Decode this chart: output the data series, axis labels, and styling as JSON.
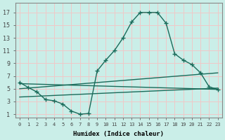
{
  "xlabel": "Humidex (Indice chaleur)",
  "background_color": "#caeee8",
  "grid_color": "#f0c8c8",
  "line_color": "#1a6b5a",
  "x_ticks": [
    0,
    1,
    2,
    3,
    4,
    5,
    6,
    7,
    8,
    9,
    10,
    11,
    12,
    13,
    14,
    15,
    16,
    17,
    18,
    19,
    20,
    21,
    22,
    23
  ],
  "y_ticks": [
    1,
    3,
    5,
    7,
    9,
    11,
    13,
    15,
    17
  ],
  "xlim": [
    -0.5,
    23.5
  ],
  "ylim": [
    0.5,
    18.5
  ],
  "main_curve_x": [
    0,
    1,
    2,
    3,
    4,
    5,
    6,
    7,
    8,
    9,
    10,
    11,
    12,
    13,
    14,
    15,
    16,
    17,
    18,
    19,
    20,
    21,
    22,
    23
  ],
  "main_curve_y": [
    6.0,
    5.2,
    4.5,
    3.3,
    3.1,
    2.6,
    1.5,
    1.0,
    1.1,
    7.8,
    9.5,
    11.0,
    13.0,
    15.5,
    17.0,
    17.0,
    17.0,
    15.3,
    10.5,
    9.5,
    8.8,
    7.5,
    5.3,
    4.9
  ],
  "line1_x": [
    0,
    23
  ],
  "line1_y": [
    5.8,
    4.9
  ],
  "line2_x": [
    0,
    23
  ],
  "line2_y": [
    3.7,
    5.1
  ],
  "line3_x": [
    0,
    23
  ],
  "line3_y": [
    5.0,
    7.5
  ]
}
